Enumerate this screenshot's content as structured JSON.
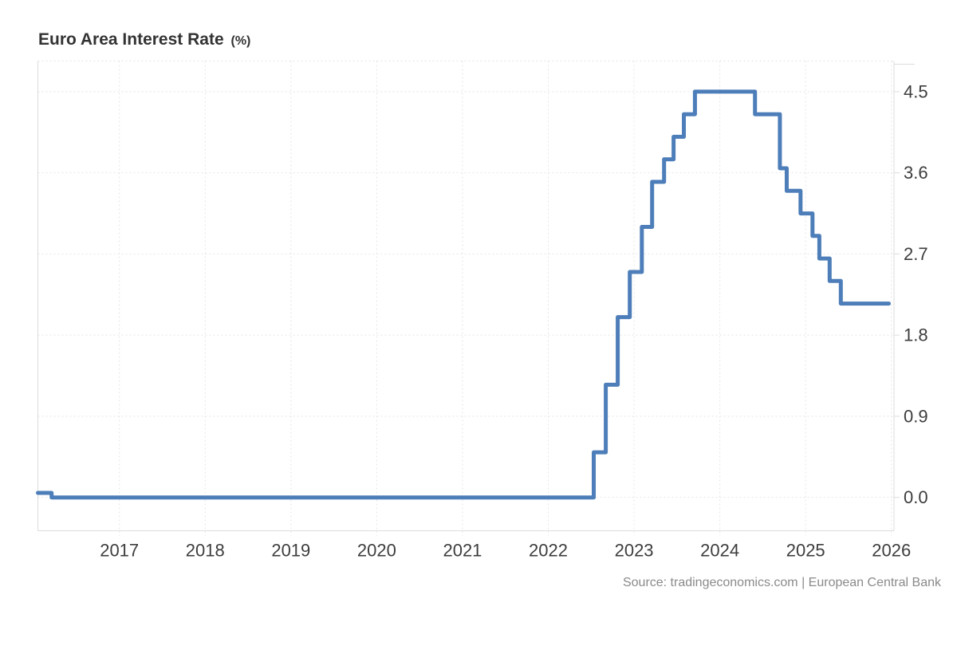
{
  "header": {
    "title": "Euro Area Interest Rate",
    "unit": "(%)"
  },
  "footer": {
    "source": "Source: tradingeconomics.com | European Central Bank"
  },
  "chart_data": {
    "type": "line",
    "style": "step-after",
    "title": "Euro Area Interest Rate (%)",
    "xlabel": "",
    "ylabel": "",
    "grid": "dotted",
    "legend": "none",
    "y_axis_position": "right",
    "x_ticks": [
      2017,
      2018,
      2019,
      2020,
      2021,
      2022,
      2023,
      2024,
      2025,
      2026
    ],
    "y_tick_labels": [
      "0.0",
      "0.9",
      "1.8",
      "2.7",
      "3.6",
      "4.5"
    ],
    "xlim": [
      2016.05,
      2026.03
    ],
    "ylim": [
      -0.37,
      4.84
    ],
    "line_color": "#4d7eb9",
    "line_width": 5,
    "grid_color": "#e5e5e5",
    "axis_color": "#dcdcdc",
    "label_color": "#3d3d3d",
    "series": [
      {
        "name": "Euro Area Interest Rate",
        "units": "percent",
        "points": [
          {
            "t": 2016.05,
            "v": 0.05
          },
          {
            "t": 2016.21,
            "v": 0.0
          },
          {
            "t": 2022.53,
            "v": 0.5
          },
          {
            "t": 2022.67,
            "v": 1.25
          },
          {
            "t": 2022.81,
            "v": 2.0
          },
          {
            "t": 2022.95,
            "v": 2.5
          },
          {
            "t": 2023.09,
            "v": 3.0
          },
          {
            "t": 2023.21,
            "v": 3.5
          },
          {
            "t": 2023.35,
            "v": 3.75
          },
          {
            "t": 2023.46,
            "v": 4.0
          },
          {
            "t": 2023.58,
            "v": 4.25
          },
          {
            "t": 2023.71,
            "v": 4.5
          },
          {
            "t": 2024.41,
            "v": 4.25
          },
          {
            "t": 2024.7,
            "v": 3.65
          },
          {
            "t": 2024.78,
            "v": 3.4
          },
          {
            "t": 2024.94,
            "v": 3.15
          },
          {
            "t": 2025.08,
            "v": 2.9
          },
          {
            "t": 2025.16,
            "v": 2.65
          },
          {
            "t": 2025.28,
            "v": 2.4
          },
          {
            "t": 2025.41,
            "v": 2.15
          },
          {
            "t": 2025.97,
            "v": 2.15
          }
        ]
      }
    ]
  }
}
